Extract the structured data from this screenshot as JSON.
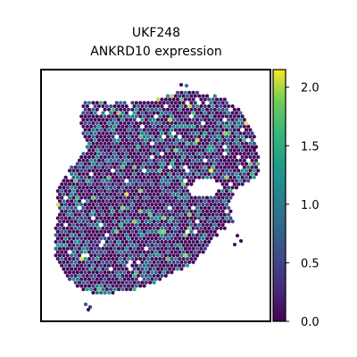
{
  "chart_data": {
    "type": "scatter",
    "title_line1": "UKF248",
    "title_line2": "ANKRD10 expression",
    "xlabel": "",
    "ylabel": "",
    "colorbar": {
      "colormap": "viridis",
      "range": [
        0.0,
        2.15
      ],
      "ticks": [
        0.0,
        0.5,
        1.0,
        1.5,
        2.0
      ],
      "tick_labels": [
        "0.0",
        "0.5",
        "1.0",
        "1.5",
        "2.0"
      ]
    },
    "colors": {
      "low": "#440154",
      "mid": "#21918c",
      "high": "#fde725",
      "frame": "#000000"
    },
    "grid": false,
    "axis_ticks": false
  }
}
